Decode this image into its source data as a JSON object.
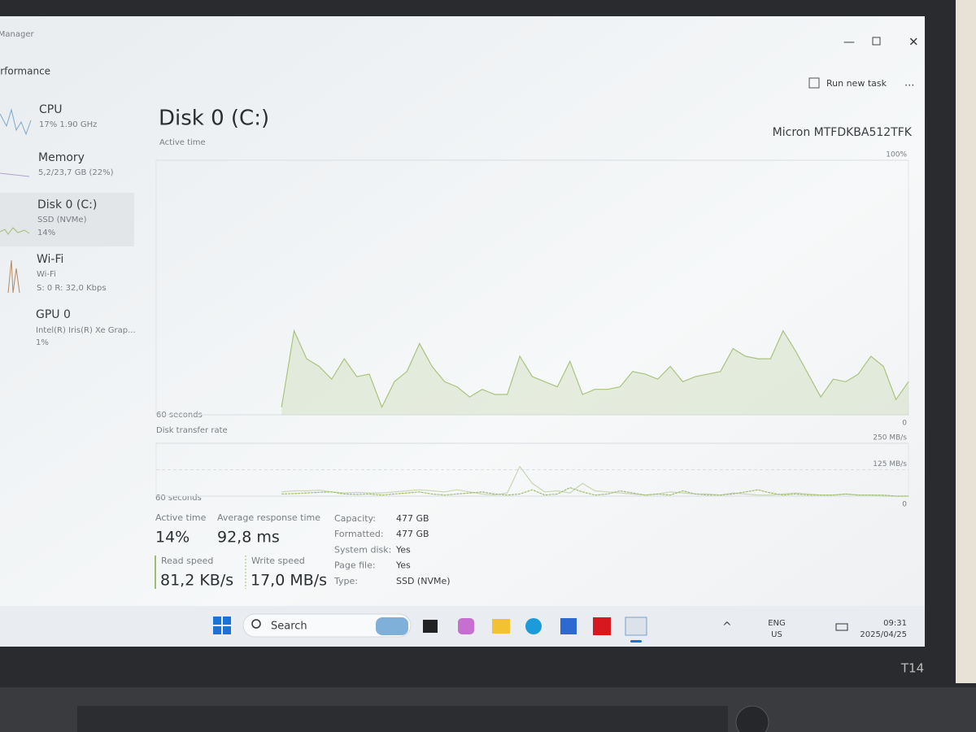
{
  "window": {
    "title": "Task Manager",
    "section": "Performance",
    "run_new_task": "Run new task",
    "more": "..."
  },
  "sidebar": [
    {
      "name": "CPU",
      "detail": "17% 1.90 GHz"
    },
    {
      "name": "Memory",
      "detail": "5,2/23,7 GB (22%)"
    },
    {
      "name": "Disk 0 (C:)",
      "detail": "SSD (NVMe)",
      "value": "14%"
    },
    {
      "name": "Wi-Fi",
      "detail": "Wi-Fi",
      "value": "S: 0 R: 32,0 Kbps"
    },
    {
      "name": "GPU 0",
      "detail": "Intel(R) Iris(R) Xe Grap...",
      "value": "1%"
    }
  ],
  "disk": {
    "title": "Disk 0 (C:)",
    "model": "Micron MTFDKBA512TFK"
  },
  "active_time_chart": {
    "type": "area",
    "title": "Active time",
    "xlabel": "60 seconds",
    "color": "#a9c47f",
    "ylim": [
      0,
      100
    ],
    "yticks": [
      0,
      {
        "value": 100,
        "label": "100%"
      }
    ],
    "values": [
      null,
      null,
      null,
      null,
      null,
      null,
      null,
      null,
      null,
      null,
      3,
      33,
      22,
      19,
      14,
      22,
      15,
      16,
      3,
      13,
      17,
      28,
      19,
      13,
      11,
      7,
      10,
      8,
      8,
      23,
      15,
      13,
      11,
      21,
      8,
      10,
      10,
      11,
      17,
      16,
      14,
      19,
      13,
      15,
      16,
      17,
      26,
      23,
      22,
      22,
      33,
      25,
      16,
      7,
      14,
      13,
      16,
      23,
      19,
      6,
      13
    ]
  },
  "transfer_chart": {
    "type": "line",
    "title": "Disk transfer rate",
    "xlabel": "60 seconds",
    "ylim": [
      0,
      250
    ],
    "yticks": [
      0,
      {
        "value": 125,
        "label": "125 MB/s"
      },
      {
        "value": 250,
        "label": "250 MB/s"
      }
    ],
    "series": [
      {
        "color": "#c9d6b4",
        "values": [
          null,
          null,
          null,
          null,
          null,
          null,
          null,
          null,
          null,
          null,
          20,
          25,
          25,
          28,
          20,
          15,
          18,
          15,
          15,
          20,
          25,
          30,
          25,
          20,
          30,
          20,
          10,
          5,
          15,
          140,
          60,
          20,
          25,
          15,
          60,
          25,
          20,
          15,
          10,
          5,
          10,
          20,
          15,
          10,
          10,
          5,
          15,
          10,
          5,
          5,
          10,
          15,
          10,
          5,
          5,
          10,
          5,
          5,
          0,
          0,
          0
        ]
      },
      {
        "color": "#9fbd6e",
        "values": [
          null,
          null,
          null,
          null,
          null,
          null,
          null,
          null,
          null,
          null,
          10,
          12,
          15,
          18,
          20,
          10,
          8,
          10,
          5,
          10,
          15,
          20,
          10,
          5,
          10,
          15,
          20,
          10,
          5,
          10,
          30,
          5,
          10,
          40,
          20,
          5,
          10,
          25,
          15,
          5,
          10,
          5,
          25,
          10,
          5,
          5,
          10,
          20,
          30,
          15,
          5,
          10,
          5,
          5,
          5,
          10,
          5,
          5,
          5,
          0,
          0
        ]
      }
    ]
  },
  "stats": [
    {
      "label": "Active time",
      "value": "14%"
    },
    {
      "label": "Average response time",
      "value": "92,8 ms"
    },
    {
      "label": "Read speed",
      "value": "81,2 KB/s"
    },
    {
      "label": "Write speed",
      "value": "17,0 MB/s"
    }
  ],
  "properties": [
    {
      "label": "Capacity:",
      "value": "477 GB"
    },
    {
      "label": "Formatted:",
      "value": "477 GB"
    },
    {
      "label": "System disk:",
      "value": "Yes"
    },
    {
      "label": "Page file:",
      "value": "Yes"
    },
    {
      "label": "Type:",
      "value": "SSD (NVMe)"
    }
  ],
  "taskbar": {
    "search": "Search",
    "language": "ENG",
    "region": "US",
    "time": "09:31",
    "date": "2025/04/25"
  },
  "laptop": {
    "model": "T14"
  }
}
